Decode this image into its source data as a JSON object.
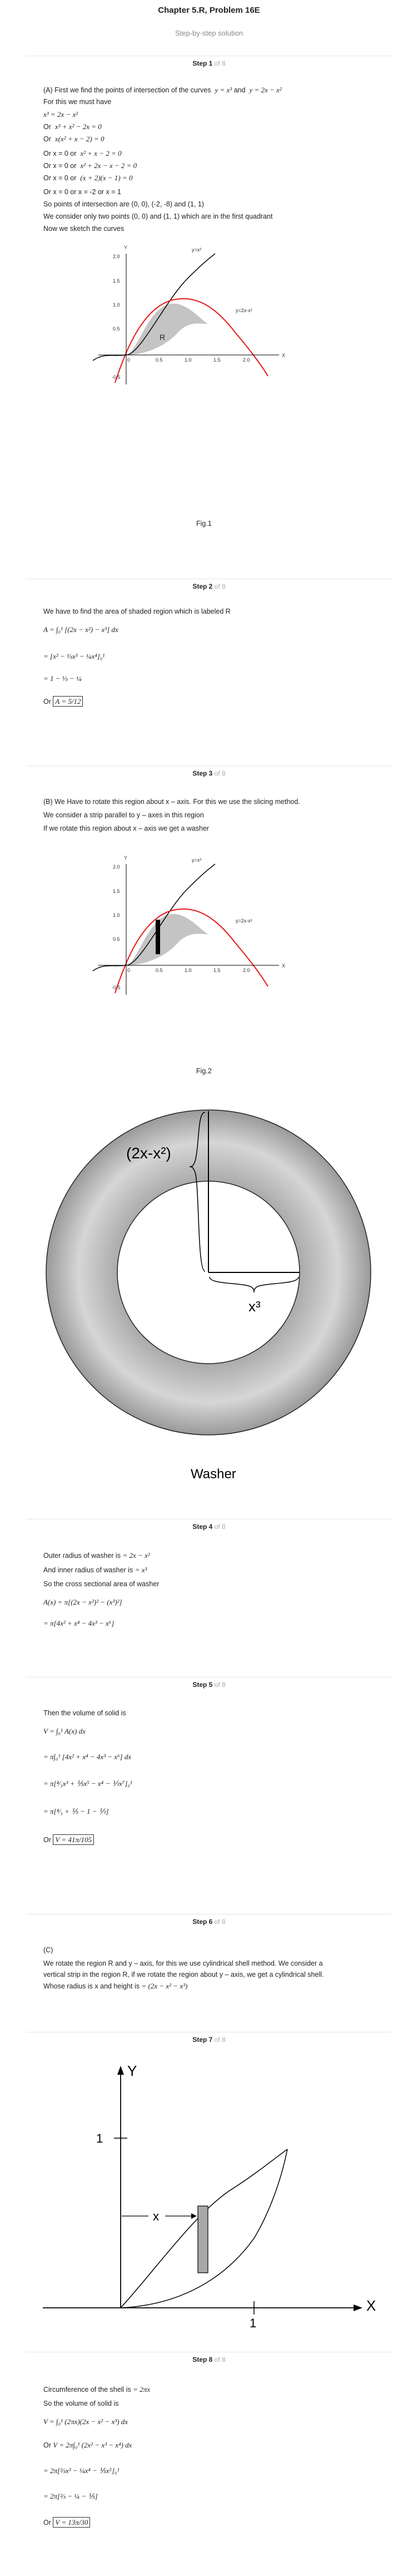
{
  "header": {
    "title": "Chapter 5.R, Problem 16E",
    "subtitle": "Step-by-step solution"
  },
  "steps": [
    {
      "label": "Step 1",
      "of": "of 8"
    },
    {
      "label": "Step 2",
      "of": "of 8"
    },
    {
      "label": "Step 3",
      "of": "of 8"
    },
    {
      "label": "Step 4",
      "of": "of 8"
    },
    {
      "label": "Step 5",
      "of": "of 8"
    },
    {
      "label": "Step 6",
      "of": "of 8"
    },
    {
      "label": "Step 7",
      "of": "of 8"
    },
    {
      "label": "Step 8",
      "of": "of 8"
    }
  ],
  "step1": {
    "intro": "(A) First we find the points of intersection of the curves",
    "curve1": "y = x³",
    "and": "and",
    "curve2": "y = 2x − x²",
    "l1": "For this we must have",
    "e1": "x³ = 2x − x²",
    "e2": "x³ + x² − 2x = 0",
    "e3": "x(x² + x − 2) = 0",
    "e4": "x² + x − 2 = 0",
    "e5": "x² + 2x − x − 2 = 0",
    "e6": "(x + 2)(x − 1) = 0",
    "or": "Or",
    "orx0": "Or x = 0 or",
    "l2": "Or x = 0 or x = -2 or x = 1",
    "l3": "So points of intersection are (0, 0), (-2, -8) and (1, 1)",
    "l4": "We consider only two points (0, 0) and (1, 1) which are in the first quadrant",
    "l5": "Now we sketch the curves",
    "fig": "Fig.1"
  },
  "graph": {
    "y_axis": "Y",
    "x_axis": "X",
    "yticks": [
      "2.0",
      "1.5",
      "1.0",
      "0.5",
      "-0.5"
    ],
    "xticks": [
      "0.5",
      "1.0",
      "1.5",
      "2.0"
    ],
    "origin": "0",
    "region": "R",
    "label_cubic": "y=x³",
    "label_parab": "y=2x-x²"
  },
  "step2": {
    "l1": "We have to find the area of shaded region which is labeled R",
    "e1": "A = ∫₀¹ [(2x − x²) − x³] dx",
    "e2": "= [x² − ⅓x³ − ¼x⁴]₀¹",
    "e3": "= 1 − ⅓ − ¼",
    "or": "Or",
    "ans": "A = 5/12"
  },
  "step3": {
    "l1": "(B) We Have to rotate this region about x – axis. For this we use the slicing method.",
    "l2": "We consider a strip parallel to y – axes in this region",
    "l3": "If we rotate this region about x – axis we get a washer",
    "fig": "Fig.2",
    "washer_outer": "(2x-x²)",
    "washer_inner": "x³",
    "washer_caption": "Washer"
  },
  "step4": {
    "l1": "Outer radius of washer is",
    "r1": "= 2x − x²",
    "l2": "And inner radius of washer is",
    "r2": "= x³",
    "l3": "So the cross sectional area of washer",
    "e1": "A(x) = π[(2x − x²)² − (x³)²]",
    "e2": "= π[4x² + x⁴ − 4x³ − x⁶]"
  },
  "step5": {
    "l1": "Then the volume of solid is",
    "e1": "V = ∫₀¹ A(x) dx",
    "e2": "= π∫₀¹ [4x² + x⁴ − 4x³ − x⁶] dx",
    "e3": "= π[⁴⁄₃x³ + ⅕x⁵ − x⁴ − ⅐x⁷]₀¹",
    "e4": "= π[⁴⁄₃ + ⅕ − 1 − ⅐]",
    "or": "Or",
    "ans": "V = 41π/105"
  },
  "step6": {
    "l0": "(C)",
    "l1": "We rotate the region R and y – axis, for this we use cylindrical shell method. We consider a",
    "l2": "vertical strip in the region R, if we rotate the region about y – axis, we get a cylindrical shell.",
    "l3": "Whose radius is x and height is",
    "h": "= (2x − x² − x³)"
  },
  "step7": {
    "y": "Y",
    "x": "X",
    "one_y": "1",
    "one_x": "1",
    "strip_x": "x"
  },
  "step8": {
    "l1": "Circumference of the shell is",
    "c": "= 2πx",
    "l2": "So the volume of solid is",
    "e1": "V = ∫₀¹ (2πx)(2x − x² − x³) dx",
    "e2": "V = 2π∫₀¹ (2x² − x³ − x⁴) dx",
    "e3": "= 2π[⅔x³ − ¼x⁴ − ⅕x⁵]₀¹",
    "e4": "= 2π[⅔ − ¼ − ⅕]",
    "or": "Or",
    "ans": "V = 13π/30"
  }
}
